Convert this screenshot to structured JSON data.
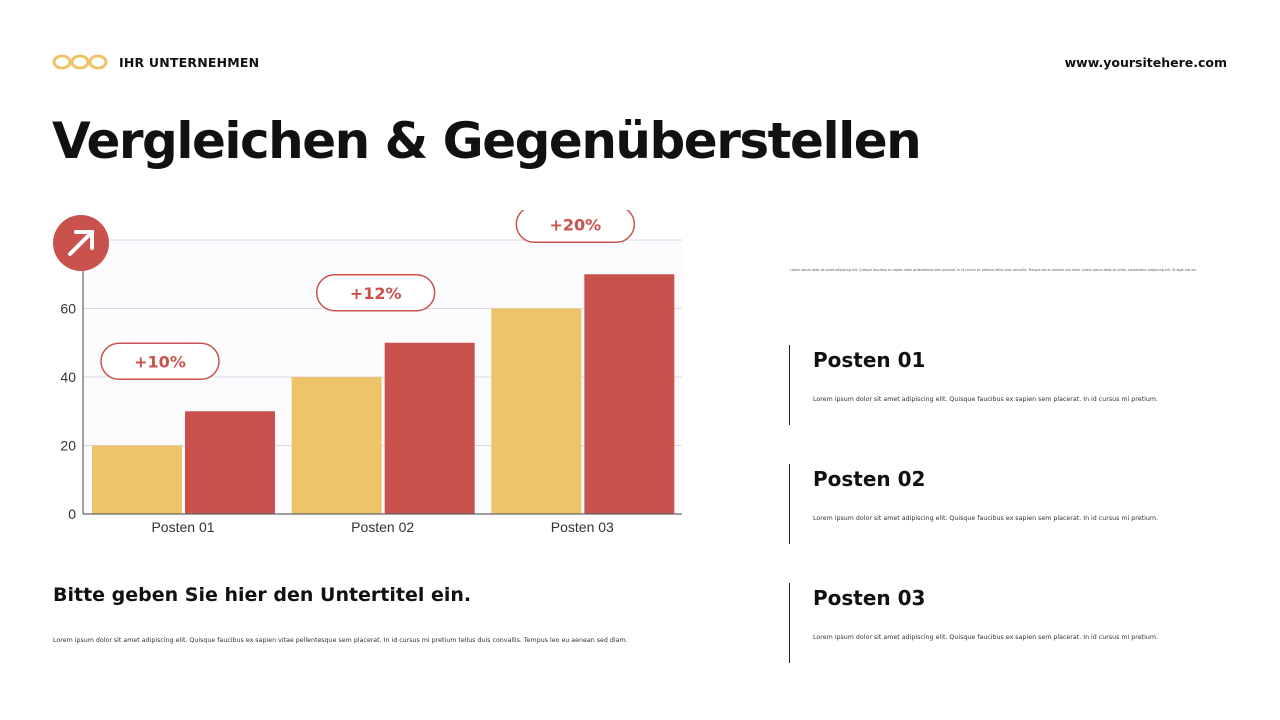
{
  "header": {
    "company": "IHR UNTERNEHMEN",
    "website": "www.yoursitehere.com",
    "logo_icon": "infinity-chain-logo",
    "logo_color": "#EEC46A"
  },
  "title": "Vergleichen & Gegenüberstellen",
  "subtitle": "Bitte geben Sie hier den Untertitel ein.",
  "body": "Lorem ipsum dolor sit amet adipiscing elit. Quisque faucibus ex sapien vitae pellentesque sem placerat. In id cursus mi pretium tellus duis convallis. Tempus leo eu aenean sed diam.",
  "top_note": "Lorem ipsum dolor sit amet adipiscing elit. Quisque faucibus ex sapien vitae pellentesque sem placerat. In id cursus mi pretium tellus duis convallis. Tempus leo eu aenean sed diam. Lorem ipsum dolor sit amet, consectetur adipiscing elit. Ut eget rutrum.",
  "items": [
    {
      "title": "Posten 01",
      "text": "Lorem ipsum dolor sit amet adipiscing elit. Quisque faucibus ex sapien sem placerat. In id cursus mi pretium."
    },
    {
      "title": "Posten 02",
      "text": "Lorem ipsum dolor sit amet adipiscing elit. Quisque faucibus ex sapien sem placerat. In id cursus mi pretium."
    },
    {
      "title": "Posten 03",
      "text": "Lorem ipsum dolor sit amet adipiscing elit. Quisque faucibus ex sapien sem placerat. In id cursus mi pretium."
    }
  ],
  "chart_data": {
    "type": "bar",
    "categories": [
      "Posten 01",
      "Posten 02",
      "Posten 03"
    ],
    "series": [
      {
        "values": [
          20,
          40,
          60
        ],
        "color": "#EEC46A"
      },
      {
        "values": [
          30,
          50,
          70
        ],
        "color": "#C9524C"
      }
    ],
    "annotations": [
      "+10%",
      "+12%",
      "+20%"
    ],
    "yticks": [
      0,
      20,
      40,
      60
    ],
    "ylim": [
      0,
      80
    ],
    "grid": true,
    "badge_icon": "arrow-up-right-icon",
    "accent": "#C9524C"
  }
}
